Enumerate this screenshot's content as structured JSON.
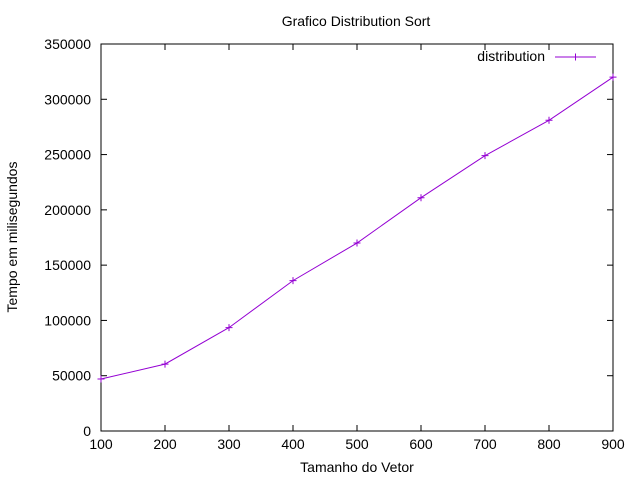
{
  "chart_data": {
    "type": "line",
    "title": "Grafico Distribution Sort",
    "xlabel": "Tamanho do Vetor",
    "ylabel": "Tempo em milisegundos",
    "xlim": [
      100,
      900
    ],
    "ylim": [
      0,
      350000
    ],
    "xticks": [
      100,
      200,
      300,
      400,
      500,
      600,
      700,
      800,
      900
    ],
    "yticks": [
      0,
      50000,
      100000,
      150000,
      200000,
      250000,
      300000,
      350000
    ],
    "xtick_labels": [
      "100",
      "200",
      "300",
      "400",
      "500",
      "600",
      "700",
      "800",
      "900"
    ],
    "ytick_labels": [
      "0",
      "50000",
      "100000",
      "150000",
      "200000",
      "250000",
      "300000",
      "350000"
    ],
    "grid": false,
    "legend_position": "top-right",
    "series": [
      {
        "name": "distribution",
        "color": "#9400d3",
        "marker": "plus",
        "x": [
          100,
          200,
          300,
          400,
          500,
          600,
          700,
          800,
          900
        ],
        "y": [
          47000,
          60500,
          93500,
          136000,
          170000,
          211000,
          249000,
          281000,
          320000
        ]
      }
    ]
  }
}
